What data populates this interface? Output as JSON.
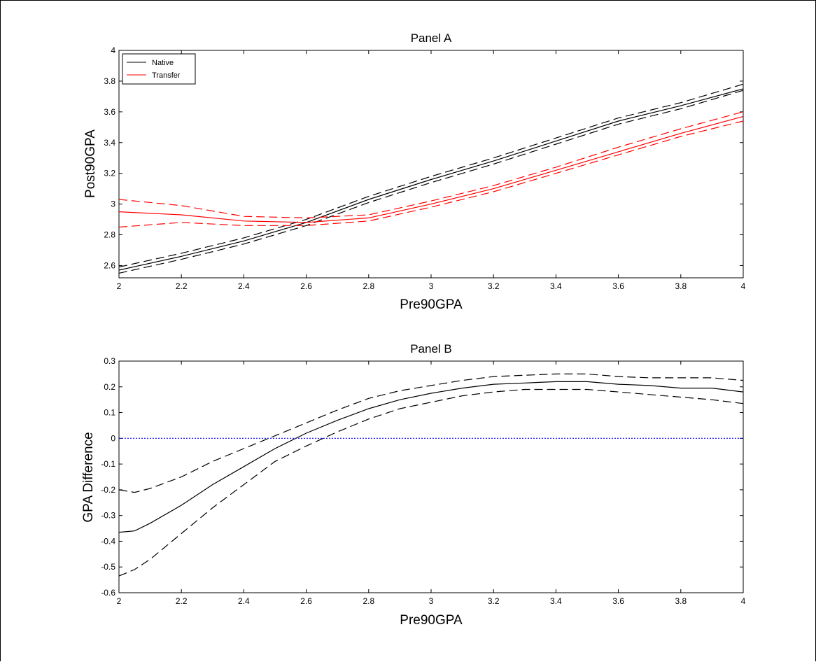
{
  "chart_data": [
    {
      "type": "line",
      "title": "Panel A",
      "xlabel": "Pre90GPA",
      "ylabel": "Post90GPA",
      "xlim": [
        2,
        4
      ],
      "ylim": [
        2.52,
        4
      ],
      "xticks": [
        "2",
        "2.2",
        "2.4",
        "2.6",
        "2.8",
        "3",
        "3.2",
        "3.4",
        "3.6",
        "3.8",
        "4"
      ],
      "yticks": [
        "2.6",
        "2.8",
        "3",
        "3.2",
        "3.4",
        "3.6",
        "3.8",
        "4"
      ],
      "legend": {
        "position": "top-left",
        "entries": [
          {
            "label": "Native",
            "color": "#000000"
          },
          {
            "label": "Transfer",
            "color": "#ff0000"
          }
        ]
      },
      "x": [
        2.0,
        2.2,
        2.4,
        2.6,
        2.8,
        3.0,
        3.2,
        3.4,
        3.6,
        3.8,
        4.0
      ],
      "series": [
        {
          "name": "Native",
          "color": "#000000",
          "style": "solid",
          "values": [
            2.57,
            2.66,
            2.76,
            2.88,
            3.03,
            3.16,
            3.28,
            3.41,
            3.54,
            3.64,
            3.75
          ]
        },
        {
          "color": "#000000",
          "style": "dashed",
          "values": [
            2.59,
            2.68,
            2.78,
            2.9,
            3.05,
            3.18,
            3.3,
            3.43,
            3.56,
            3.66,
            3.78
          ]
        },
        {
          "color": "#000000",
          "style": "dashed",
          "values": [
            2.55,
            2.64,
            2.74,
            2.86,
            3.01,
            3.14,
            3.26,
            3.39,
            3.52,
            3.62,
            3.74
          ]
        },
        {
          "name": "Transfer",
          "color": "#ff0000",
          "style": "solid",
          "values": [
            2.95,
            2.93,
            2.89,
            2.88,
            2.91,
            3.0,
            3.1,
            3.22,
            3.34,
            3.46,
            3.57
          ]
        },
        {
          "color": "#ff0000",
          "style": "dashed",
          "values": [
            3.03,
            2.99,
            2.92,
            2.91,
            2.93,
            3.02,
            3.12,
            3.24,
            3.37,
            3.49,
            3.6
          ]
        },
        {
          "color": "#ff0000",
          "style": "dashed",
          "values": [
            2.85,
            2.88,
            2.86,
            2.86,
            2.89,
            2.98,
            3.08,
            3.2,
            3.32,
            3.44,
            3.54
          ]
        }
      ]
    },
    {
      "type": "line",
      "title": "Panel B",
      "xlabel": "Pre90GPA",
      "ylabel": "GPA Difference",
      "xlim": [
        2,
        4
      ],
      "ylim": [
        -0.6,
        0.3
      ],
      "xticks": [
        "2",
        "2.2",
        "2.4",
        "2.6",
        "2.8",
        "3",
        "3.2",
        "3.4",
        "3.6",
        "3.8",
        "4"
      ],
      "yticks": [
        "-0.6",
        "-0.5",
        "-0.4",
        "-0.3",
        "-0.2",
        "-0.1",
        "0",
        "0.1",
        "0.2",
        "0.3"
      ],
      "x": [
        2.0,
        2.05,
        2.1,
        2.2,
        2.3,
        2.4,
        2.5,
        2.6,
        2.7,
        2.8,
        2.9,
        3.0,
        3.1,
        3.2,
        3.3,
        3.4,
        3.5,
        3.6,
        3.7,
        3.8,
        3.9,
        4.0
      ],
      "series": [
        {
          "color": "#000000",
          "style": "solid",
          "values": [
            -0.365,
            -0.36,
            -0.33,
            -0.26,
            -0.18,
            -0.11,
            -0.04,
            0.02,
            0.07,
            0.115,
            0.15,
            0.175,
            0.195,
            0.21,
            0.215,
            0.22,
            0.22,
            0.21,
            0.205,
            0.195,
            0.195,
            0.18
          ]
        },
        {
          "color": "#000000",
          "style": "dashed",
          "values": [
            -0.2,
            -0.21,
            -0.195,
            -0.15,
            -0.09,
            -0.04,
            0.01,
            0.06,
            0.11,
            0.155,
            0.185,
            0.205,
            0.225,
            0.24,
            0.245,
            0.25,
            0.25,
            0.24,
            0.235,
            0.235,
            0.235,
            0.225
          ]
        },
        {
          "color": "#000000",
          "style": "dashed",
          "values": [
            -0.535,
            -0.51,
            -0.47,
            -0.37,
            -0.27,
            -0.18,
            -0.09,
            -0.03,
            0.025,
            0.075,
            0.115,
            0.14,
            0.165,
            0.18,
            0.19,
            0.19,
            0.19,
            0.18,
            0.17,
            0.16,
            0.15,
            0.135
          ]
        },
        {
          "color": "#0000ff",
          "style": "dotted",
          "values": [
            0,
            0,
            0,
            0,
            0,
            0,
            0,
            0,
            0,
            0,
            0,
            0,
            0,
            0,
            0,
            0,
            0,
            0,
            0,
            0,
            0,
            0
          ]
        }
      ]
    }
  ]
}
